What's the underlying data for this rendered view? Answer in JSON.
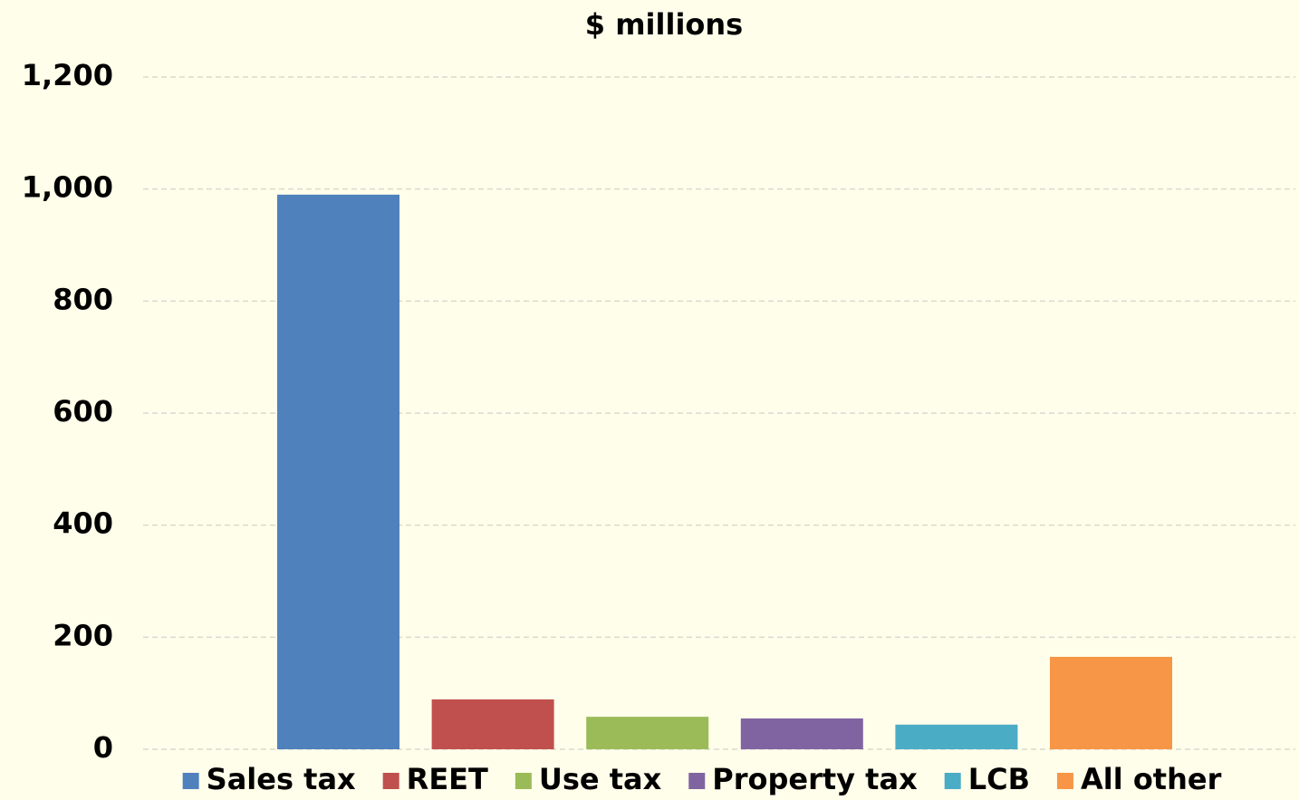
{
  "chart_data": {
    "type": "bar",
    "title": "$ millions",
    "categories": [
      null
    ],
    "series": [
      {
        "name": "Sales tax",
        "color": "#4f81bd",
        "values": [
          990
        ]
      },
      {
        "name": "REET",
        "color": "#c0504d",
        "values": [
          89
        ]
      },
      {
        "name": "Use tax",
        "color": "#9bbb59",
        "values": [
          58
        ]
      },
      {
        "name": "Property tax",
        "color": "#8064a2",
        "values": [
          55
        ]
      },
      {
        "name": "LCB",
        "color": "#4bacc6",
        "values": [
          44
        ]
      },
      {
        "name": "All other",
        "color": "#f79646",
        "values": [
          165
        ]
      }
    ],
    "ylim": [
      0,
      1200
    ],
    "yticks": [
      0,
      200,
      400,
      600,
      800,
      {
        "value": 1000,
        "label": "1,000"
      },
      {
        "value": 1200,
        "label": "1,200"
      }
    ],
    "grid": true,
    "legend": "bottom"
  }
}
